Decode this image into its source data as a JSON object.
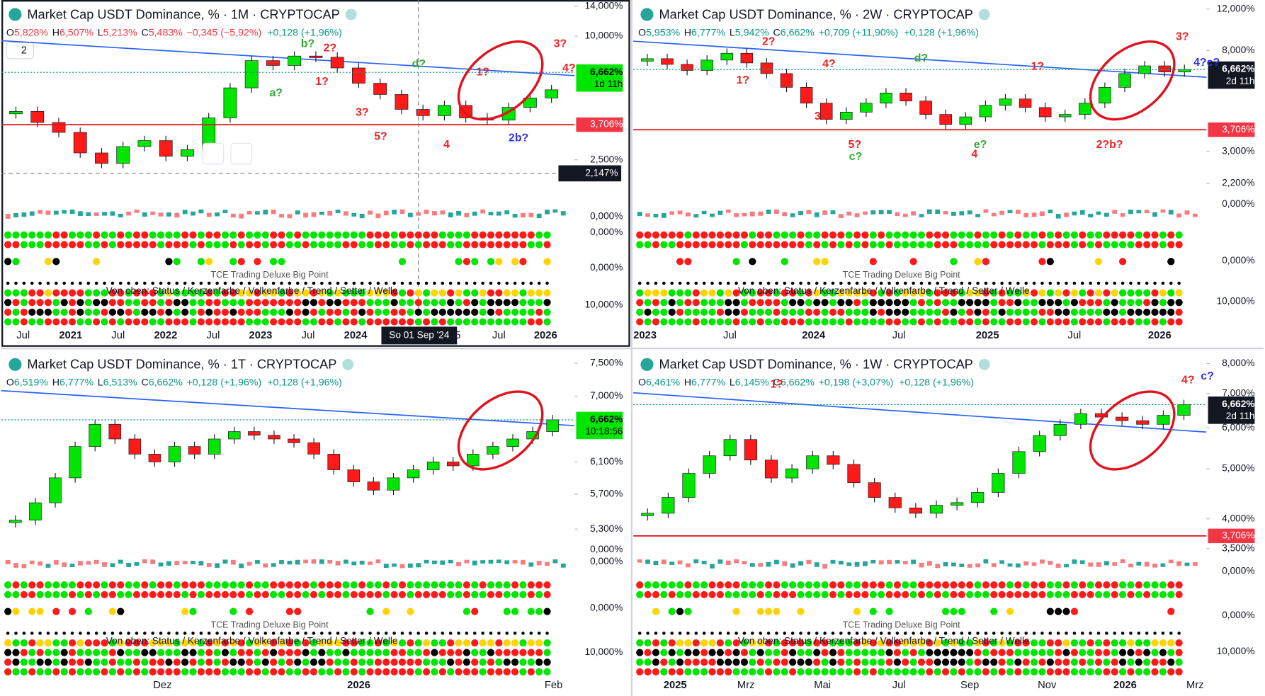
{
  "panels": [
    {
      "title": "Market Cap USDT Dominance, % · 1M · CRYPTOCAP",
      "ohlc": [
        {
          "k": "O",
          "v": "5,828%"
        },
        {
          "k": "H",
          "v": "6,507%"
        },
        {
          "k": "L",
          "v": "5,213%"
        },
        {
          "k": "C",
          "v": "5,483%"
        }
      ],
      "changes": [
        "−0,345 (−5,92%)",
        "+0,128 (+1,96%)"
      ],
      "interval": "2",
      "price_axis": {
        "log": true,
        "ylim": [
          1.8,
          15
        ],
        "yticks": [
          {
            "value": 14,
            "label": "14,000%"
          },
          {
            "value": 10,
            "label": "10,000%"
          },
          {
            "value": 2.5,
            "label": "2,500%"
          }
        ]
      },
      "last": {
        "value": 6.662,
        "label": "6,662%",
        "countdown": "1d 11h"
      },
      "level": {
        "value": 3.706,
        "label": "3,706%"
      },
      "cursor": {
        "value": 2.147,
        "label": "2,147%",
        "date": "So 01 Sep '24"
      },
      "closes": [
        4.3,
        3.8,
        3.4,
        2.7,
        2.4,
        2.9,
        3.1,
        2.6,
        2.8,
        4.0,
        5.6,
        7.6,
        7.2,
        8.0,
        7.9,
        7.0,
        5.9,
        5.2,
        4.4,
        4.1,
        4.6,
        4.0,
        3.9,
        4.5,
        5.0,
        5.48
      ],
      "time_labels": [
        "Jul",
        "2021",
        "Jul",
        "2022",
        "Jul",
        "2023",
        "Jul",
        "2024",
        "5",
        "Jul",
        "2026"
      ],
      "indicator_labels": [
        "0,000%",
        "0,000%",
        "0,000%",
        "10,000%"
      ],
      "legend_text": [
        "TCE Trading Deluxe Big Point",
        "Von oben: Status / Kerzenfarbe / Volkenfarbe / Trend / Setter / Welle"
      ],
      "annotations": [
        "b?",
        "2?",
        "a?",
        "1?",
        "3?",
        "5?",
        "4",
        "d?",
        "1?",
        "4?",
        "3?",
        "2b?"
      ]
    },
    {
      "title": "Market Cap USDT Dominance, % · 2W · CRYPTOCAP",
      "ohlc": [
        {
          "k": "O",
          "v": "5,953%"
        },
        {
          "k": "H",
          "v": "6,777%"
        },
        {
          "k": "L",
          "v": "5,942%"
        },
        {
          "k": "C",
          "v": "6,662%"
        }
      ],
      "changes": [
        "+0,709 (+11,90%)",
        "+0,128 (+1,96%)"
      ],
      "price_axis": {
        "log": true,
        "ylim": [
          2.0,
          13.1
        ],
        "yticks": [
          {
            "value": 12,
            "label": "12,000%"
          },
          {
            "value": 8,
            "label": "8,000%"
          },
          {
            "value": 3,
            "label": "3,000%"
          },
          {
            "value": 2.2,
            "label": "2,200%"
          }
        ]
      },
      "last": {
        "value": 6.662,
        "label": "6,662%",
        "countdown": "2d 11h"
      },
      "level": {
        "value": 3.706,
        "label": "3,706%"
      },
      "closes": [
        7.4,
        7.0,
        6.6,
        7.3,
        7.8,
        7.1,
        6.4,
        5.6,
        4.8,
        4.1,
        4.4,
        4.8,
        5.3,
        4.9,
        4.3,
        3.9,
        4.2,
        4.7,
        5.0,
        4.6,
        4.2,
        4.3,
        4.8,
        5.6,
        6.4,
        6.9,
        6.5,
        6.662
      ],
      "time_labels": [
        "2023",
        "Jul",
        "2024",
        "Jul",
        "2025",
        "Jul",
        "2026"
      ],
      "indicator_labels": [
        "0,000%",
        "0,000%",
        "10,000%"
      ],
      "legend_text": [
        "TCE Trading Deluxe Big Point",
        "Von oben: Status / Kerzenfarbe / Volkenfarbe / Trend / Setter / Welle"
      ],
      "annotations": [
        "2?",
        "4?",
        "1?",
        "3?",
        "5?",
        "c?",
        "d?",
        "1?",
        "e?",
        "4",
        "2?b?",
        "3?",
        "4?c?"
      ]
    },
    {
      "title": "Market Cap USDT Dominance, % · 1T · CRYPTOCAP",
      "ohlc": [
        {
          "k": "O",
          "v": "6,519%"
        },
        {
          "k": "H",
          "v": "6,777%"
        },
        {
          "k": "L",
          "v": "6,513%"
        },
        {
          "k": "C",
          "v": "6,662%"
        }
      ],
      "changes": [
        "+0,128 (+1,96%)",
        "+0,128 (+1,96%)"
      ],
      "price_axis": {
        "log": true,
        "ylim": [
          5.19,
          7.71
        ],
        "yticks": [
          {
            "value": 7.5,
            "label": "7,500%"
          },
          {
            "value": 7,
            "label": "7,000%"
          },
          {
            "value": 6.1,
            "label": "6,100%"
          },
          {
            "value": 5.7,
            "label": "5,700%"
          },
          {
            "value": 5.3,
            "label": "5,300%"
          }
        ]
      },
      "last": {
        "value": 6.662,
        "label": "6,662%",
        "countdown": "10:18:56"
      },
      "closes": [
        5.4,
        5.6,
        5.9,
        6.3,
        6.6,
        6.4,
        6.2,
        6.1,
        6.3,
        6.2,
        6.4,
        6.5,
        6.45,
        6.4,
        6.35,
        6.2,
        6.0,
        5.85,
        5.75,
        5.9,
        6.0,
        6.1,
        6.05,
        6.2,
        6.3,
        6.4,
        6.5,
        6.662
      ],
      "time_labels": [
        "Dez",
        "2026",
        "Feb"
      ],
      "indicator_labels": [
        "0,000%",
        "0,000%",
        "0,000%",
        "10,000%"
      ],
      "legend_text": [
        "TCE Trading Deluxe Big Point",
        "Von oben: Status / Kerzenfarbe / Volkenfarbe / Trend / Setter / Welle"
      ],
      "annotations": []
    },
    {
      "title": "Market Cap USDT Dominance, % · 1W · CRYPTOCAP",
      "ohlc": [
        {
          "k": "O",
          "v": "6,461%"
        },
        {
          "k": "H",
          "v": "6,777%"
        },
        {
          "k": "L",
          "v": "6,145%"
        },
        {
          "k": "C",
          "v": "6,662%"
        }
      ],
      "changes": [
        "+0,198 (+3,07%)",
        "+0,128 (+1,96%)"
      ],
      "price_axis": {
        "log": true,
        "ylim": [
          3.4,
          8.5
        ],
        "yticks": [
          {
            "value": 8,
            "label": "8,000%"
          },
          {
            "value": 7,
            "label": "7,000%"
          },
          {
            "value": 6,
            "label": "6,000%"
          },
          {
            "value": 5,
            "label": "5,000%"
          },
          {
            "value": 4,
            "label": "4,000%"
          },
          {
            "value": 3.5,
            "label": "3,500%"
          }
        ]
      },
      "last": {
        "value": 6.662,
        "label": "6,662%",
        "countdown": "2d 11h"
      },
      "level": {
        "value": 3.706,
        "label": "3,706%"
      },
      "closes": [
        4.1,
        4.4,
        4.9,
        5.3,
        5.7,
        5.2,
        4.8,
        5.0,
        5.3,
        5.1,
        4.7,
        4.4,
        4.2,
        4.1,
        4.25,
        4.3,
        4.5,
        4.9,
        5.4,
        5.8,
        6.1,
        6.4,
        6.3,
        6.2,
        6.1,
        6.35,
        6.662
      ],
      "time_labels": [
        "2025",
        "Mrz",
        "Mai",
        "Jul",
        "Sep",
        "Nov",
        "2026",
        "Mrz"
      ],
      "indicator_labels": [
        "0,000%",
        "0,000%",
        "10,000%"
      ],
      "legend_text": [
        "TCE Trading Deluxe Big Point",
        "Von oben: Status / Kerzenfarbe / Volkenfarbe / Trend / Setter / Welle"
      ],
      "annotations": [
        "1?",
        "4?",
        "c?"
      ]
    }
  ]
}
